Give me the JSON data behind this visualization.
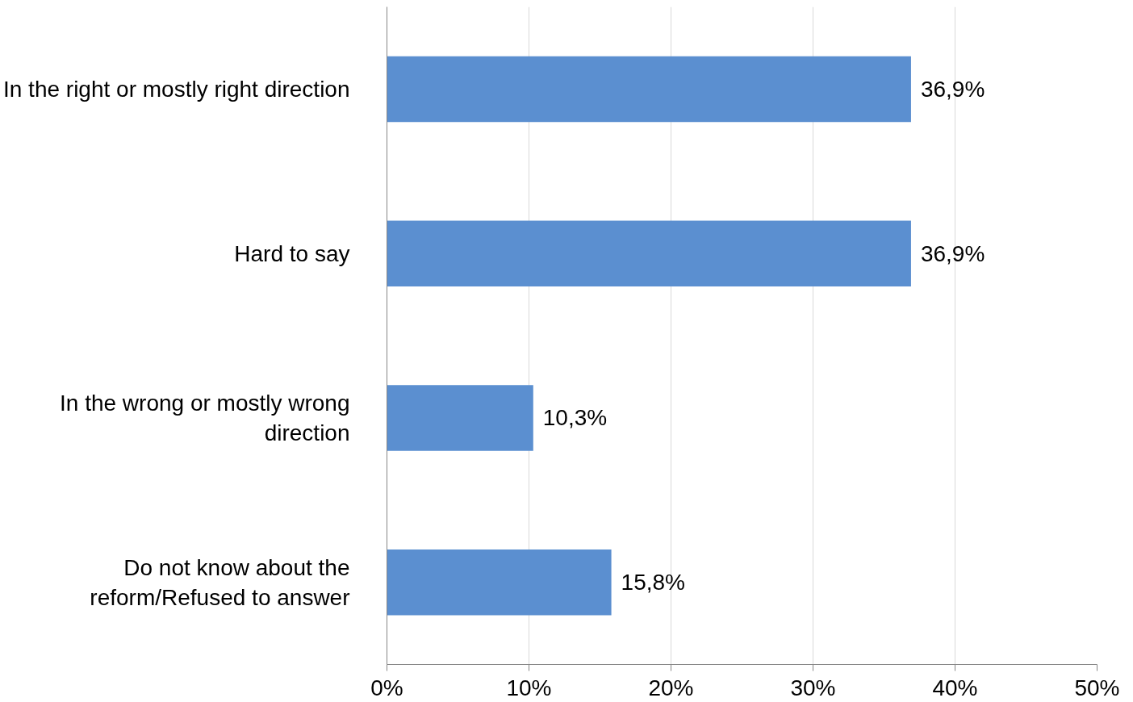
{
  "chart_data": {
    "type": "bar",
    "orientation": "horizontal",
    "categories": [
      "In the right or mostly right direction",
      "Hard to say",
      "In the wrong or mostly wrong\ndirection",
      "Do not know about the\nreform/Refused to answer"
    ],
    "values": [
      36.9,
      36.9,
      10.3,
      15.8
    ],
    "value_labels": [
      "36,9%",
      "36,9%",
      "10,3%",
      "15,8%"
    ],
    "color": "#5b8fd0",
    "xlim": [
      0,
      50
    ],
    "xticks": [
      {
        "value": 0,
        "label": "0%"
      },
      {
        "value": 10,
        "label": "10%"
      },
      {
        "value": 20,
        "label": "20%"
      },
      {
        "value": 30,
        "label": "30%"
      },
      {
        "value": 40,
        "label": "40%"
      },
      {
        "value": 50,
        "label": "50%"
      }
    ],
    "grid": "x"
  }
}
